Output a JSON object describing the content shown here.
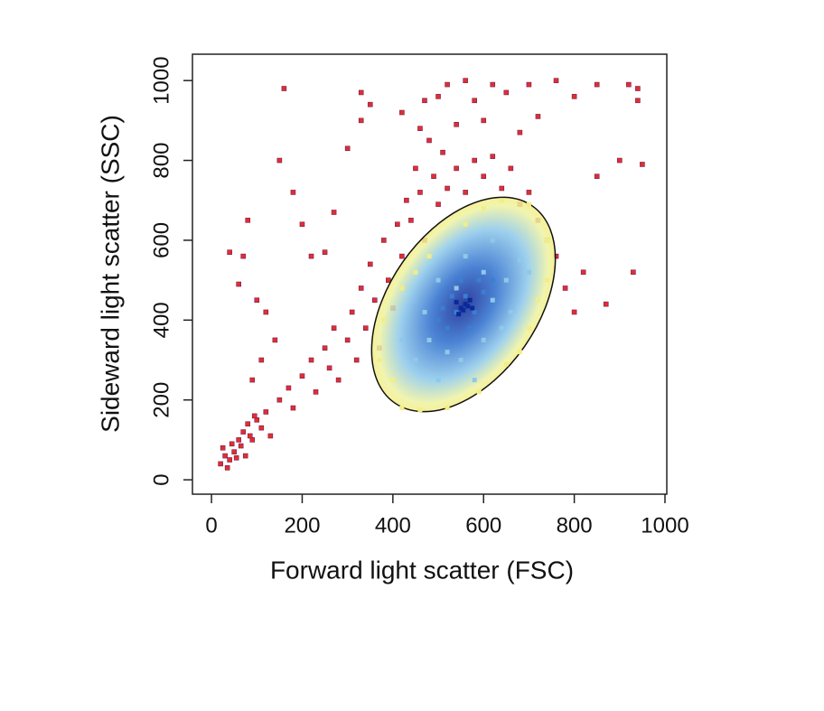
{
  "chart_data": {
    "type": "scatter",
    "xlabel": "Forward light scatter (FSC)",
    "ylabel": "Sideward light scatter (SSC)",
    "xlim": [
      -42,
      1004
    ],
    "ylim": [
      -36,
      1066
    ],
    "xticks": [
      0,
      200,
      400,
      600,
      800,
      1000
    ],
    "yticks": [
      0,
      200,
      400,
      600,
      800,
      1000
    ],
    "series": [
      {
        "color": "#e0302a",
        "x": [
          20,
          30,
          40,
          25,
          50,
          60,
          35,
          45,
          70,
          80,
          90,
          100,
          110,
          55,
          65,
          75,
          85,
          95,
          120,
          130,
          150,
          170,
          180,
          200,
          220,
          230,
          250,
          260,
          270,
          280,
          300,
          310,
          320,
          330,
          340,
          350,
          360,
          370,
          380,
          390,
          400,
          410,
          420,
          430,
          440,
          450,
          460,
          470,
          480,
          490,
          500,
          510,
          520,
          540,
          560,
          580,
          600,
          620,
          640,
          660,
          680,
          700,
          720,
          740,
          760,
          780,
          800,
          820,
          850,
          870,
          900,
          930,
          950,
          940,
          920,
          850,
          800,
          760,
          700,
          650,
          620,
          580,
          560,
          520,
          500,
          470,
          420,
          350,
          330,
          300,
          250,
          220,
          160,
          150,
          180,
          80,
          70,
          40,
          60,
          100,
          120,
          140,
          110,
          90,
          270,
          200,
          330,
          460,
          540,
          600,
          680,
          720,
          940
        ],
        "y": [
          40,
          60,
          50,
          80,
          70,
          100,
          30,
          90,
          120,
          140,
          100,
          150,
          130,
          55,
          85,
          60,
          110,
          160,
          170,
          110,
          200,
          230,
          180,
          260,
          300,
          220,
          330,
          280,
          380,
          250,
          350,
          420,
          300,
          480,
          380,
          540,
          450,
          330,
          600,
          500,
          430,
          640,
          560,
          700,
          650,
          780,
          720,
          600,
          850,
          760,
          690,
          820,
          730,
          780,
          720,
          800,
          760,
          810,
          730,
          780,
          690,
          720,
          650,
          600,
          560,
          480,
          420,
          520,
          760,
          440,
          800,
          520,
          790,
          950,
          990,
          990,
          960,
          1000,
          990,
          970,
          990,
          950,
          1000,
          990,
          960,
          950,
          920,
          940,
          970,
          830,
          570,
          560,
          980,
          800,
          720,
          650,
          560,
          570,
          490,
          450,
          420,
          350,
          300,
          250,
          670,
          640,
          900,
          880,
          890,
          900,
          870,
          910,
          980
        ]
      },
      {
        "color": "#f2ee86",
        "x": [
          420,
          370,
          380,
          420,
          480,
          560,
          640,
          700,
          740,
          740,
          700,
          650,
          590,
          520,
          460,
          400,
          450,
          600,
          720,
          680
        ],
        "y": [
          180,
          300,
          400,
          480,
          560,
          640,
          700,
          690,
          600,
          500,
          380,
          290,
          220,
          180,
          175,
          250,
          520,
          680,
          450,
          320
        ]
      },
      {
        "color": "#8ec9ea",
        "x": [
          450,
          480,
          500,
          520,
          550,
          600,
          620,
          650,
          680,
          620,
          560,
          500,
          470,
          420,
          580,
          660,
          700,
          540,
          600,
          640
        ],
        "y": [
          300,
          350,
          250,
          320,
          300,
          350,
          450,
          500,
          550,
          600,
          560,
          500,
          420,
          350,
          250,
          420,
          520,
          480,
          520,
          380
        ]
      },
      {
        "color": "#3a7fd0",
        "x": [
          520,
          540,
          560,
          580,
          530,
          570,
          600,
          510,
          550,
          590,
          500,
          620
        ],
        "y": [
          380,
          420,
          460,
          420,
          460,
          380,
          470,
          430,
          500,
          500,
          400,
          500
        ]
      },
      {
        "color": "#0a2a9a",
        "x": [
          550,
          560,
          545,
          570,
          555,
          565,
          540,
          575
        ],
        "y": [
          430,
          440,
          415,
          450,
          425,
          435,
          445,
          430
        ]
      }
    ]
  }
}
